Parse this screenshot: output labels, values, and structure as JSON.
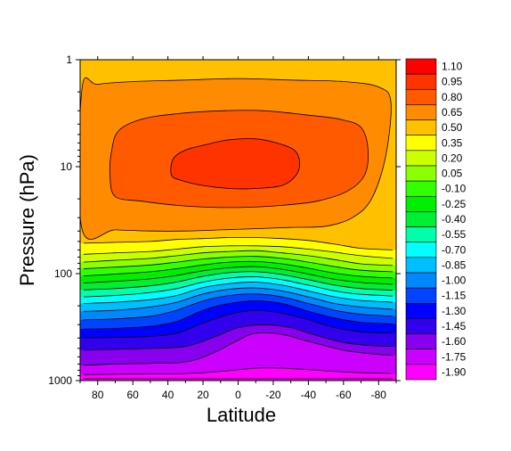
{
  "chart_data": {
    "type": "heatmap",
    "title": "",
    "xlabel": "Latitude",
    "ylabel": "Pressure (hPa)",
    "x_range": [
      90,
      -90
    ],
    "y_range": [
      1,
      1000
    ],
    "y_scale": "log",
    "x_ticks": [
      80,
      60,
      40,
      20,
      0,
      -20,
      -40,
      -60,
      -80
    ],
    "y_ticks": [
      1,
      10,
      100,
      1000
    ],
    "colorbar": {
      "placement": "right",
      "levels": [
        "1.10",
        "0.95",
        "0.80",
        "0.65",
        "0.50",
        "0.35",
        "0.20",
        "0.05",
        "-0.10",
        "-0.25",
        "-0.40",
        "-0.55",
        "-0.70",
        "-0.85",
        "-1.00",
        "-1.15",
        "-1.30",
        "-1.45",
        "-1.60",
        "-1.75",
        "-1.90"
      ],
      "colors": [
        "#ff0000",
        "#ff3300",
        "#ff5a00",
        "#ff8c00",
        "#ffc000",
        "#ffff00",
        "#ccff00",
        "#8cff00",
        "#33ff00",
        "#00ee00",
        "#00ee33",
        "#00ffaa",
        "#00ffff",
        "#00bfff",
        "#0088ff",
        "#0044ff",
        "#0000ff",
        "#3300ee",
        "#8800ee",
        "#cc00ff",
        "#ff00ff"
      ]
    },
    "contours": [
      {
        "level": -1.9,
        "points": [
          [
            88,
            960
          ],
          [
            0,
            960
          ],
          [
            -88,
            960
          ]
        ]
      },
      {
        "level": -1.75,
        "points": [
          [
            88,
            880
          ],
          [
            60,
            870
          ],
          [
            30,
            860
          ],
          [
            10,
            820
          ],
          [
            -15,
            760
          ],
          [
            -40,
            790
          ],
          [
            -60,
            830
          ],
          [
            -88,
            860
          ]
        ]
      },
      {
        "level": -1.6,
        "points": [
          [
            88,
            720
          ],
          [
            70,
            700
          ],
          [
            50,
            690
          ],
          [
            30,
            670
          ],
          [
            15,
            560
          ],
          [
            0,
            420
          ],
          [
            -10,
            360
          ],
          [
            -25,
            370
          ],
          [
            -40,
            430
          ],
          [
            -60,
            520
          ],
          [
            -75,
            560
          ],
          [
            -88,
            580
          ]
        ]
      },
      {
        "level": -1.45,
        "points": [
          [
            88,
            520
          ],
          [
            70,
            510
          ],
          [
            50,
            500
          ],
          [
            30,
            480
          ],
          [
            15,
            400
          ],
          [
            0,
            320
          ],
          [
            -15,
            300
          ],
          [
            -30,
            320
          ],
          [
            -45,
            380
          ],
          [
            -60,
            440
          ],
          [
            -75,
            470
          ],
          [
            -88,
            480
          ]
        ]
      },
      {
        "level": -1.3,
        "points": [
          [
            88,
            400
          ],
          [
            70,
            395
          ],
          [
            50,
            385
          ],
          [
            35,
            360
          ],
          [
            20,
            290
          ],
          [
            5,
            240
          ],
          [
            -10,
            220
          ],
          [
            -25,
            235
          ],
          [
            -40,
            270
          ],
          [
            -55,
            320
          ],
          [
            -70,
            350
          ],
          [
            -88,
            360
          ]
        ]
      },
      {
        "level": -1.15,
        "points": [
          [
            88,
            330
          ],
          [
            70,
            325
          ],
          [
            50,
            310
          ],
          [
            35,
            280
          ],
          [
            20,
            220
          ],
          [
            5,
            190
          ],
          [
            -10,
            180
          ],
          [
            -25,
            190
          ],
          [
            -40,
            225
          ],
          [
            -55,
            260
          ],
          [
            -70,
            285
          ],
          [
            -88,
            295
          ]
        ]
      },
      {
        "level": -1.0,
        "points": [
          [
            88,
            270
          ],
          [
            70,
            265
          ],
          [
            50,
            250
          ],
          [
            35,
            220
          ],
          [
            20,
            180
          ],
          [
            5,
            160
          ],
          [
            -10,
            155
          ],
          [
            -25,
            165
          ],
          [
            -40,
            190
          ],
          [
            -55,
            220
          ],
          [
            -70,
            240
          ],
          [
            -88,
            250
          ]
        ]
      },
      {
        "level": -0.85,
        "points": [
          [
            88,
            225
          ],
          [
            70,
            220
          ],
          [
            50,
            205
          ],
          [
            35,
            185
          ],
          [
            20,
            155
          ],
          [
            5,
            140
          ],
          [
            -10,
            136
          ],
          [
            -25,
            145
          ],
          [
            -40,
            165
          ],
          [
            -55,
            190
          ],
          [
            -70,
            205
          ],
          [
            -88,
            215
          ]
        ]
      },
      {
        "level": -0.7,
        "points": [
          [
            88,
            190
          ],
          [
            70,
            185
          ],
          [
            50,
            175
          ],
          [
            35,
            160
          ],
          [
            20,
            135
          ],
          [
            5,
            124
          ],
          [
            -10,
            120
          ],
          [
            -25,
            128
          ],
          [
            -40,
            145
          ],
          [
            -55,
            165
          ],
          [
            -70,
            178
          ],
          [
            -88,
            185
          ]
        ]
      },
      {
        "level": -0.55,
        "points": [
          [
            88,
            165
          ],
          [
            70,
            160
          ],
          [
            50,
            150
          ],
          [
            35,
            138
          ],
          [
            20,
            120
          ],
          [
            5,
            110
          ],
          [
            -10,
            107
          ],
          [
            -25,
            114
          ],
          [
            -40,
            128
          ],
          [
            -55,
            145
          ],
          [
            -70,
            156
          ],
          [
            -88,
            162
          ]
        ]
      },
      {
        "level": -0.4,
        "points": [
          [
            88,
            142
          ],
          [
            70,
            138
          ],
          [
            50,
            130
          ],
          [
            35,
            120
          ],
          [
            20,
            106
          ],
          [
            5,
            98
          ],
          [
            -10,
            96
          ],
          [
            -25,
            102
          ],
          [
            -40,
            114
          ],
          [
            -55,
            128
          ],
          [
            -70,
            138
          ],
          [
            -88,
            143
          ]
        ]
      },
      {
        "level": -0.25,
        "points": [
          [
            88,
            122
          ],
          [
            70,
            118
          ],
          [
            50,
            112
          ],
          [
            35,
            104
          ],
          [
            20,
            94
          ],
          [
            5,
            88
          ],
          [
            -10,
            86
          ],
          [
            -25,
            91
          ],
          [
            -40,
            101
          ],
          [
            -55,
            113
          ],
          [
            -70,
            121
          ],
          [
            -88,
            126
          ]
        ]
      },
      {
        "level": -0.1,
        "points": [
          [
            88,
            105
          ],
          [
            70,
            101
          ],
          [
            50,
            96
          ],
          [
            35,
            90
          ],
          [
            20,
            83
          ],
          [
            5,
            78
          ],
          [
            -10,
            77
          ],
          [
            -25,
            81
          ],
          [
            -40,
            89
          ],
          [
            -55,
            99
          ],
          [
            -70,
            106
          ],
          [
            -88,
            110
          ]
        ]
      },
      {
        "level": 0.05,
        "points": [
          [
            88,
            90
          ],
          [
            70,
            87
          ],
          [
            50,
            83
          ],
          [
            35,
            78
          ],
          [
            20,
            73
          ],
          [
            5,
            70
          ],
          [
            -10,
            69
          ],
          [
            -25,
            72
          ],
          [
            -40,
            78
          ],
          [
            -55,
            86
          ],
          [
            -70,
            93
          ],
          [
            -88,
            96
          ]
        ]
      },
      {
        "level": 0.2,
        "points": [
          [
            88,
            78
          ],
          [
            70,
            75
          ],
          [
            50,
            72
          ],
          [
            35,
            68
          ],
          [
            20,
            64
          ],
          [
            5,
            62
          ],
          [
            -10,
            61
          ],
          [
            -25,
            64
          ],
          [
            -40,
            68
          ],
          [
            -55,
            74
          ],
          [
            -70,
            81
          ],
          [
            -88,
            84
          ]
        ]
      },
      {
        "level": 0.35,
        "points": [
          [
            88,
            66
          ],
          [
            70,
            64
          ],
          [
            50,
            62
          ],
          [
            35,
            59
          ],
          [
            20,
            56
          ],
          [
            5,
            55
          ],
          [
            -10,
            55
          ],
          [
            -25,
            56
          ],
          [
            -40,
            59
          ],
          [
            -55,
            63
          ],
          [
            -70,
            68
          ],
          [
            -88,
            72
          ]
        ]
      },
      {
        "level": 0.5,
        "points": [
          [
            88,
            52
          ],
          [
            70,
            51
          ],
          [
            50,
            50
          ],
          [
            35,
            48
          ],
          [
            20,
            47
          ],
          [
            5,
            46
          ],
          [
            -10,
            46
          ],
          [
            -25,
            47
          ],
          [
            -40,
            49
          ],
          [
            -55,
            53
          ],
          [
            -70,
            58
          ],
          [
            -88,
            60
          ]
        ]
      }
    ],
    "closed_contours": [
      {
        "level": 0.65,
        "points": [
          [
            89,
            38
          ],
          [
            70,
            39
          ],
          [
            50,
            40
          ],
          [
            30,
            40
          ],
          [
            10,
            39
          ],
          [
            -10,
            38
          ],
          [
            -30,
            37
          ],
          [
            -50,
            36
          ],
          [
            -65,
            30
          ],
          [
            -76,
            20
          ],
          [
            -84,
            8
          ],
          [
            -87,
            2.5
          ],
          [
            -80,
            1.8
          ],
          [
            -60,
            1.6
          ],
          [
            -30,
            1.55
          ],
          [
            0,
            1.5
          ],
          [
            30,
            1.55
          ],
          [
            60,
            1.6
          ],
          [
            80,
            1.7
          ],
          [
            89,
            1.9
          ]
        ]
      },
      {
        "level": 0.8,
        "points": [
          [
            70,
            19
          ],
          [
            55,
            21
          ],
          [
            35,
            23
          ],
          [
            15,
            24
          ],
          [
            -5,
            24
          ],
          [
            -25,
            23
          ],
          [
            -45,
            21
          ],
          [
            -62,
            17
          ],
          [
            -72,
            12
          ],
          [
            -74,
            7
          ],
          [
            -70,
            4.3
          ],
          [
            -58,
            3.6
          ],
          [
            -40,
            3.3
          ],
          [
            -15,
            3.0
          ],
          [
            10,
            3.0
          ],
          [
            35,
            3.2
          ],
          [
            55,
            3.6
          ],
          [
            68,
            4.6
          ],
          [
            72,
            7
          ],
          [
            73,
            12
          ]
        ]
      },
      {
        "level": 0.95,
        "points": [
          [
            38,
            12
          ],
          [
            32,
            13.5
          ],
          [
            20,
            15
          ],
          [
            5,
            16
          ],
          [
            -10,
            16
          ],
          [
            -25,
            15
          ],
          [
            -33,
            12
          ],
          [
            -35,
            9
          ],
          [
            -32,
            7
          ],
          [
            -22,
            6
          ],
          [
            -10,
            5.5
          ],
          [
            5,
            5.6
          ],
          [
            18,
            6.2
          ],
          [
            30,
            7
          ],
          [
            37,
            8.5
          ]
        ]
      }
    ]
  }
}
